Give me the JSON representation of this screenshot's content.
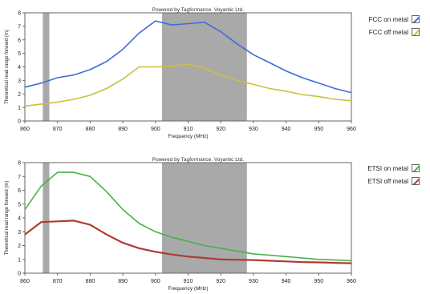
{
  "chart_data": [
    {
      "type": "line",
      "title": "Powered by Tagformance. Voyantic Ltd.",
      "xlabel": "Frequency (MHz)",
      "ylabel": "Theoretical read range forward (m)",
      "xlim": [
        860,
        960
      ],
      "ylim": [
        0,
        8
      ],
      "xticks": [
        860,
        870,
        880,
        890,
        900,
        910,
        920,
        930,
        940,
        950,
        960
      ],
      "yticks": [
        0,
        1,
        2,
        3,
        4,
        5,
        6,
        7,
        8
      ],
      "shaded_bands": [
        [
          865.5,
          867.5
        ],
        [
          902,
          928
        ]
      ],
      "grid": false,
      "legend_position": "outside-right",
      "series": [
        {
          "name": "FCC on metal",
          "color": "#3b6fd6",
          "x": [
            860,
            865,
            870,
            875,
            880,
            885,
            890,
            895,
            900,
            905,
            910,
            915,
            920,
            925,
            930,
            935,
            940,
            945,
            950,
            955,
            960
          ],
          "y": [
            2.5,
            2.8,
            3.2,
            3.4,
            3.8,
            4.4,
            5.3,
            6.5,
            7.4,
            7.1,
            7.2,
            7.3,
            6.6,
            5.7,
            4.9,
            4.3,
            3.7,
            3.2,
            2.8,
            2.4,
            2.1
          ]
        },
        {
          "name": "FCC off metal",
          "color": "#c8c23c",
          "x": [
            860,
            865,
            870,
            875,
            880,
            885,
            890,
            895,
            900,
            905,
            910,
            915,
            920,
            925,
            930,
            935,
            940,
            945,
            950,
            955,
            960
          ],
          "y": [
            1.1,
            1.25,
            1.4,
            1.6,
            1.9,
            2.4,
            3.1,
            4.0,
            4.0,
            4.05,
            4.2,
            3.9,
            3.4,
            3.0,
            2.7,
            2.4,
            2.2,
            1.95,
            1.8,
            1.6,
            1.5
          ]
        }
      ]
    },
    {
      "type": "line",
      "title": "Powered by Tagformance. Voyantic Ltd.",
      "xlabel": "Frequency (MHz)",
      "ylabel": "Theoretical read range forward (m)",
      "xlim": [
        860,
        960
      ],
      "ylim": [
        0,
        8
      ],
      "xticks": [
        860,
        870,
        880,
        890,
        900,
        910,
        920,
        930,
        940,
        950,
        960
      ],
      "yticks": [
        0,
        1,
        2,
        3,
        4,
        5,
        6,
        7,
        8
      ],
      "shaded_bands": [
        [
          865.5,
          867.5
        ],
        [
          902,
          928
        ]
      ],
      "grid": false,
      "legend_position": "outside-right",
      "series": [
        {
          "name": "ETSI on metal",
          "color": "#49b04a",
          "x": [
            860,
            865,
            870,
            875,
            880,
            885,
            890,
            895,
            900,
            905,
            910,
            915,
            920,
            925,
            930,
            935,
            940,
            945,
            950,
            955,
            960
          ],
          "y": [
            4.6,
            6.3,
            7.3,
            7.3,
            7.0,
            5.9,
            4.6,
            3.6,
            3.0,
            2.6,
            2.3,
            2.0,
            1.8,
            1.6,
            1.4,
            1.3,
            1.2,
            1.1,
            1.0,
            0.95,
            0.9
          ]
        },
        {
          "name": "ETSI off metal",
          "color": "#b03a32",
          "x": [
            860,
            865,
            870,
            875,
            880,
            885,
            890,
            895,
            900,
            905,
            910,
            915,
            920,
            925,
            930,
            935,
            940,
            945,
            950,
            955,
            960
          ],
          "y": [
            2.8,
            3.7,
            3.75,
            3.8,
            3.5,
            2.8,
            2.2,
            1.8,
            1.55,
            1.35,
            1.2,
            1.1,
            1.0,
            0.97,
            0.95,
            0.9,
            0.85,
            0.8,
            0.78,
            0.75,
            0.72
          ]
        }
      ]
    }
  ]
}
